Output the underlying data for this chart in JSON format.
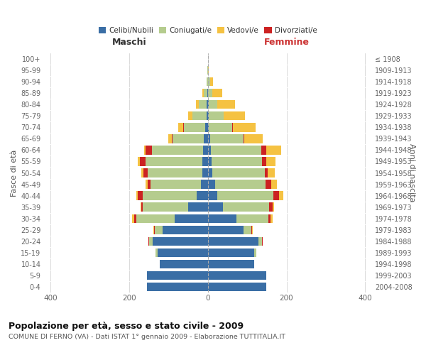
{
  "age_groups": [
    "0-4",
    "5-9",
    "10-14",
    "15-19",
    "20-24",
    "25-29",
    "30-34",
    "35-39",
    "40-44",
    "45-49",
    "50-54",
    "55-59",
    "60-64",
    "65-69",
    "70-74",
    "75-79",
    "80-84",
    "85-89",
    "90-94",
    "95-99",
    "100+"
  ],
  "birth_years": [
    "2004-2008",
    "1999-2003",
    "1994-1998",
    "1989-1993",
    "1984-1988",
    "1979-1983",
    "1974-1978",
    "1969-1973",
    "1964-1968",
    "1959-1963",
    "1954-1958",
    "1949-1953",
    "1944-1948",
    "1939-1943",
    "1934-1938",
    "1929-1933",
    "1924-1928",
    "1919-1923",
    "1914-1918",
    "1909-1913",
    "≤ 1908"
  ],
  "maschi_celibi": [
    155,
    155,
    122,
    128,
    140,
    115,
    85,
    50,
    28,
    18,
    14,
    14,
    13,
    10,
    6,
    4,
    3,
    2,
    0,
    0,
    0
  ],
  "maschi_coniugati": [
    0,
    0,
    0,
    5,
    10,
    20,
    98,
    115,
    138,
    128,
    140,
    145,
    130,
    80,
    55,
    36,
    20,
    8,
    3,
    1,
    0
  ],
  "maschi_vedovi": [
    0,
    0,
    0,
    0,
    1,
    2,
    5,
    2,
    5,
    5,
    5,
    5,
    5,
    8,
    12,
    10,
    8,
    5,
    1,
    0,
    0
  ],
  "maschi_divorziati": [
    0,
    0,
    0,
    0,
    1,
    2,
    5,
    5,
    12,
    8,
    10,
    14,
    15,
    2,
    2,
    0,
    0,
    0,
    0,
    0,
    0
  ],
  "femmine_nubili": [
    148,
    148,
    118,
    118,
    128,
    90,
    72,
    38,
    24,
    18,
    12,
    10,
    8,
    5,
    3,
    2,
    2,
    0,
    0,
    0,
    0
  ],
  "femmine_coniugate": [
    0,
    0,
    0,
    5,
    10,
    20,
    82,
    118,
    142,
    128,
    132,
    128,
    128,
    85,
    58,
    38,
    22,
    12,
    5,
    1,
    0
  ],
  "femmine_vedove": [
    0,
    0,
    0,
    0,
    1,
    3,
    5,
    5,
    10,
    14,
    18,
    24,
    38,
    48,
    58,
    55,
    45,
    25,
    8,
    2,
    0
  ],
  "femmine_divorziate": [
    0,
    0,
    0,
    0,
    1,
    2,
    5,
    8,
    15,
    15,
    8,
    10,
    12,
    2,
    2,
    0,
    0,
    0,
    0,
    0,
    0
  ],
  "colors": {
    "celibi_nubili": "#3a6ea5",
    "coniugati": "#b5cc8e",
    "vedovi": "#f5c242",
    "divorziati": "#cc2222"
  },
  "title": "Popolazione per età, sesso e stato civile - 2009",
  "subtitle": "COMUNE DI FERNO (VA) - Dati ISTAT 1° gennaio 2009 - Elaborazione TUTTITALIA.IT",
  "label_maschi": "Maschi",
  "label_femmine": "Femmine",
  "ylabel_left": "Fasce di età",
  "ylabel_right": "Anni di nascita",
  "legend": [
    "Celibi/Nubili",
    "Coniugati/e",
    "Vedovi/e",
    "Divorziati/e"
  ],
  "xlim": 420,
  "bg_color": "#ffffff",
  "grid_color": "#cccccc"
}
